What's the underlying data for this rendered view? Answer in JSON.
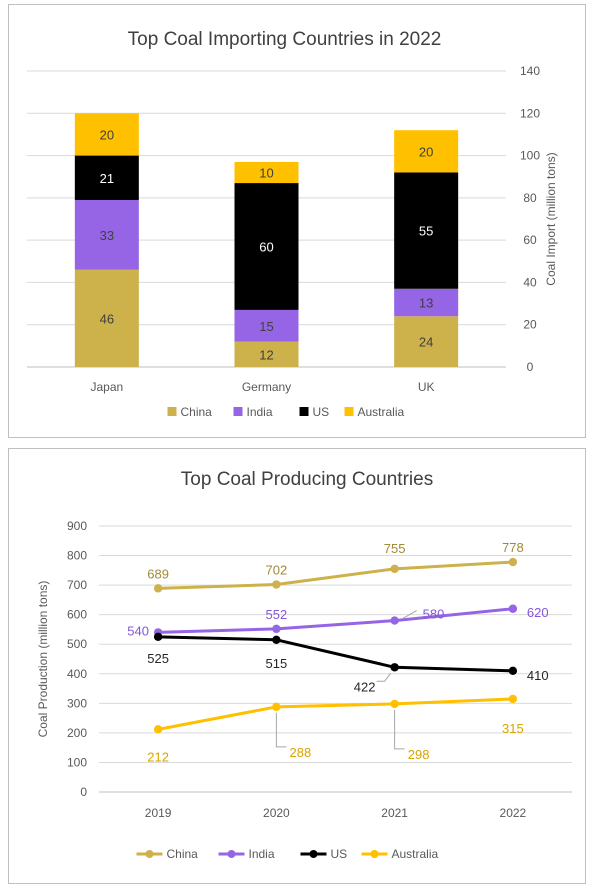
{
  "chart_data": [
    {
      "type": "bar",
      "stacked": true,
      "title": "Top Coal Importing Countries in 2022",
      "xlabel": "",
      "ylabel": "Coal Import (million tons)",
      "ylim": [
        0,
        140
      ],
      "yticks": [
        0,
        20,
        40,
        60,
        80,
        100,
        120,
        140
      ],
      "categories": [
        "Japan",
        "Germany",
        "UK"
      ],
      "series": [
        {
          "name": "China",
          "values": [
            46,
            12,
            24
          ],
          "color": "#cdb14a",
          "label_color": "#404040"
        },
        {
          "name": "India",
          "values": [
            33,
            15,
            13
          ],
          "color": "#9565e6",
          "label_color": "#404040"
        },
        {
          "name": "US",
          "values": [
            21,
            60,
            55
          ],
          "color": "#000000",
          "label_color": "#ffffff"
        },
        {
          "name": "Australia",
          "values": [
            20,
            10,
            20
          ],
          "color": "#ffc000",
          "label_color": "#404040"
        }
      ],
      "legend": "bottom",
      "grid": true,
      "y_axis_side": "right"
    },
    {
      "type": "line",
      "title": "Top Coal Producing Countries",
      "xlabel": "",
      "ylabel": "Coal Production (million tons)",
      "ylim": [
        0,
        900
      ],
      "yticks": [
        0,
        100,
        200,
        300,
        400,
        500,
        600,
        700,
        800,
        900
      ],
      "x": [
        "2019",
        "2020",
        "2021",
        "2022"
      ],
      "series": [
        {
          "name": "China",
          "values": [
            689,
            702,
            755,
            778
          ],
          "color": "#cdb14a",
          "label_color": "#a08a36"
        },
        {
          "name": "India",
          "values": [
            540,
            552,
            580,
            620
          ],
          "color": "#9565e6",
          "label_color": "#8458d6"
        },
        {
          "name": "US",
          "values": [
            525,
            515,
            422,
            410
          ],
          "color": "#000000",
          "label_color": "#262626"
        },
        {
          "name": "Australia",
          "values": [
            212,
            288,
            298,
            315
          ],
          "color": "#ffc000",
          "label_color": "#d9a400"
        }
      ],
      "legend": "bottom",
      "grid": true
    }
  ]
}
